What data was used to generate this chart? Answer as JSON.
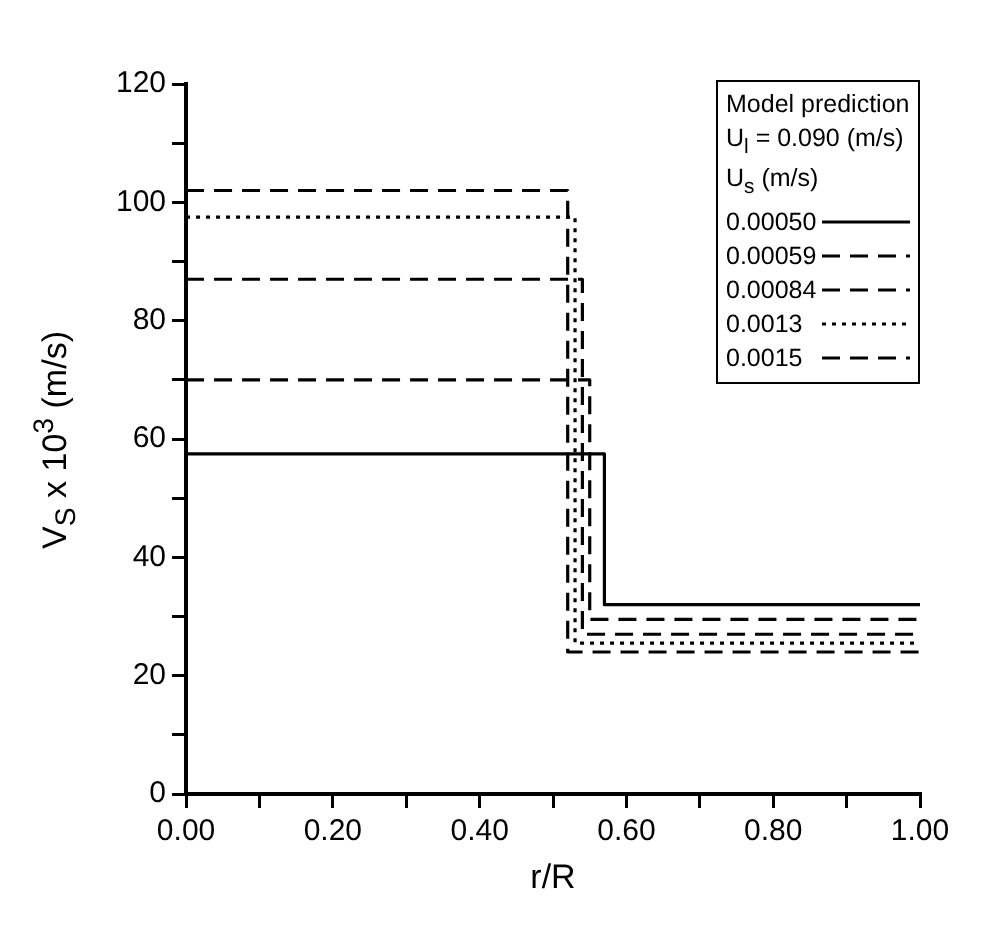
{
  "chart_data": {
    "type": "step",
    "xlabel": "r/R",
    "ylabel": "V$_{S}$ x 10$^{3}$ (m/s)",
    "legend_title": "Model prediction\nU$_{l}$ = 0.090 (m/s)\nU$_{s}$ (m/s)",
    "legend": "top right",
    "grid": false,
    "marker": "none",
    "xlim": [
      0,
      1
    ],
    "ylim": [
      0,
      120
    ],
    "xticks": [
      {
        "value": 0,
        "label": "0.00"
      },
      {
        "value": 0.1,
        "label": null
      },
      {
        "value": 0.2,
        "label": "0.20"
      },
      {
        "value": 0.3,
        "label": null
      },
      {
        "value": 0.4,
        "label": "0.40"
      },
      {
        "value": 0.5,
        "label": null
      },
      {
        "value": 0.6,
        "label": "0.60"
      },
      {
        "value": 0.7,
        "label": null
      },
      {
        "value": 0.8,
        "label": "0.80"
      },
      {
        "value": 0.9,
        "label": null
      },
      {
        "value": 1,
        "label": "1.00"
      }
    ],
    "yticks": [
      0,
      {
        "value": 10,
        "label": null
      },
      20,
      {
        "value": 30,
        "label": null
      },
      40,
      {
        "value": 50,
        "label": null
      },
      60,
      {
        "value": 70,
        "label": null
      },
      80,
      {
        "value": 90,
        "label": null
      },
      100,
      {
        "value": 110,
        "label": null
      },
      120
    ],
    "series": [
      {
        "name": "0.00050",
        "color": "#000000",
        "line_style": "solid",
        "x": [
          0,
          0.57,
          1
        ],
        "values": [
          57.5,
          32,
          32
        ]
      },
      {
        "name": "0.00059",
        "color": "#000000",
        "line_style": "dashed",
        "x": [
          0,
          0.55,
          1
        ],
        "values": [
          70,
          29.5,
          29.5
        ]
      },
      {
        "name": "0.00084",
        "color": "#000000",
        "line_style": "dashed",
        "x": [
          0,
          0.54,
          1
        ],
        "values": [
          87,
          27,
          27
        ]
      },
      {
        "name": "0.0013",
        "color": "#000000",
        "line_style": "dotted",
        "x": [
          0,
          0.53,
          1
        ],
        "values": [
          97.5,
          25.5,
          25.5
        ]
      },
      {
        "name": "0.0015",
        "color": "#000000",
        "line_style": "dashed",
        "x": [
          0,
          0.52,
          1
        ],
        "values": [
          102,
          24,
          24
        ]
      }
    ]
  }
}
